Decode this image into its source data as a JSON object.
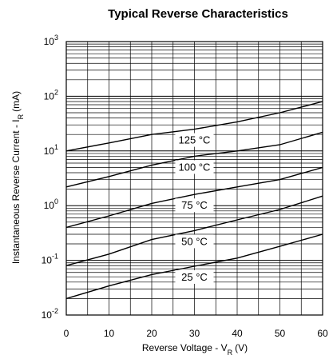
{
  "chart_data": {
    "type": "line",
    "title": "Typical Reverse Characteristics",
    "xlabel": "Reverse Voltage - V",
    "xlabel_sub": "R",
    "xlabel_unit": "(V)",
    "ylabel": "Instantaneous Reverse Current - I",
    "ylabel_sub": "R",
    "ylabel_unit": "(mA)",
    "xlim": [
      0,
      60
    ],
    "x_ticks": [
      "0",
      "10",
      "20",
      "30",
      "40",
      "50",
      "60"
    ],
    "ylim": [
      0.01,
      1000
    ],
    "y_scale": "log",
    "y_ticks": [
      {
        "base": "10",
        "exp": "-2"
      },
      {
        "base": "10",
        "exp": "-1"
      },
      {
        "base": "10",
        "exp": "0"
      },
      {
        "base": "10",
        "exp": "1"
      },
      {
        "base": "10",
        "exp": "2"
      },
      {
        "base": "10",
        "exp": "3"
      }
    ],
    "grid": true,
    "series": [
      {
        "name": "125 °C",
        "x": [
          0,
          10,
          20,
          30,
          40,
          50,
          60
        ],
        "y": [
          10,
          14,
          20,
          25,
          34,
          50,
          80
        ]
      },
      {
        "name": "100 °C",
        "x": [
          0,
          10,
          20,
          30,
          40,
          50,
          60
        ],
        "y": [
          2.2,
          3.4,
          5.5,
          8,
          10,
          13,
          22
        ]
      },
      {
        "name": "75 °C",
        "x": [
          0,
          10,
          20,
          30,
          40,
          50,
          60
        ],
        "y": [
          0.4,
          0.65,
          1.1,
          1.6,
          2.2,
          3,
          5
        ]
      },
      {
        "name": "50 °C",
        "x": [
          0,
          10,
          20,
          30,
          40,
          50,
          60
        ],
        "y": [
          0.08,
          0.13,
          0.24,
          0.35,
          0.55,
          0.85,
          1.5
        ]
      },
      {
        "name": "25 °C",
        "x": [
          0,
          10,
          20,
          30,
          40,
          50,
          60
        ],
        "y": [
          0.02,
          0.034,
          0.055,
          0.078,
          0.11,
          0.18,
          0.3
        ]
      }
    ]
  }
}
